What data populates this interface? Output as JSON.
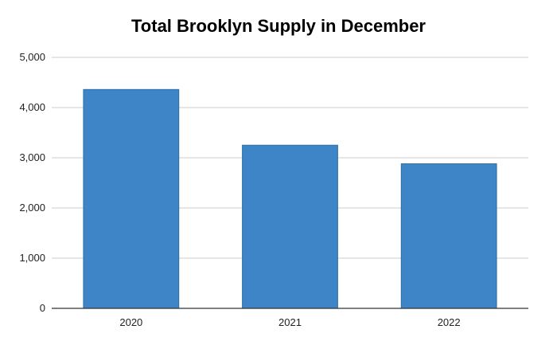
{
  "chart_data": {
    "type": "bar",
    "title": "Total Brooklyn Supply in December",
    "categories": [
      "2020",
      "2021",
      "2022"
    ],
    "values": [
      4360,
      3250,
      2880
    ],
    "xlabel": "",
    "ylabel": "",
    "ylim": [
      0,
      5000
    ],
    "yticks": [
      0,
      1000,
      2000,
      3000,
      4000,
      5000
    ],
    "ytick_labels": [
      "0",
      "1,000",
      "2,000",
      "3,000",
      "4,000",
      "5,000"
    ],
    "grid": true,
    "legend": "none",
    "bar_color": "#3d85c6",
    "bar_edge_color": "#2d6fa8"
  }
}
